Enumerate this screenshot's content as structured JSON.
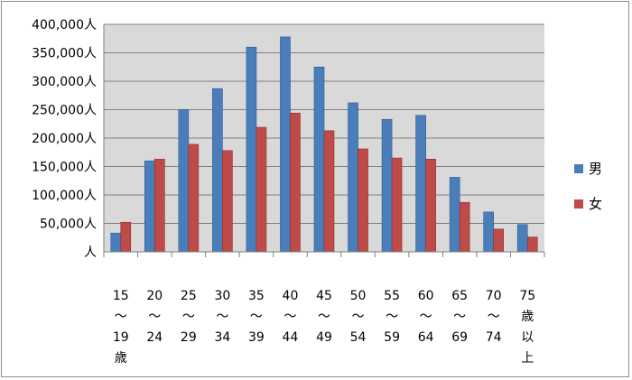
{
  "chart_data": {
    "type": "bar",
    "categories": [
      [
        "15",
        "〜",
        "19",
        "歳"
      ],
      [
        "20",
        "〜",
        "24"
      ],
      [
        "25",
        "〜",
        "29"
      ],
      [
        "30",
        "〜",
        "34"
      ],
      [
        "35",
        "〜",
        "39"
      ],
      [
        "40",
        "〜",
        "44"
      ],
      [
        "45",
        "〜",
        "49"
      ],
      [
        "50",
        "〜",
        "54"
      ],
      [
        "55",
        "〜",
        "59"
      ],
      [
        "60",
        "〜",
        "64"
      ],
      [
        "65",
        "〜",
        "69"
      ],
      [
        "70",
        "〜",
        "74"
      ],
      [
        "75",
        "歳",
        "以",
        "上"
      ]
    ],
    "series": [
      {
        "name": "男",
        "color": "#4a7ebb",
        "values": [
          33000,
          160000,
          250000,
          287000,
          360000,
          378000,
          325000,
          262000,
          233000,
          240000,
          131000,
          70000,
          48000
        ]
      },
      {
        "name": "女",
        "color": "#be4b48",
        "values": [
          52000,
          163000,
          189000,
          178000,
          219000,
          244000,
          213000,
          181000,
          165000,
          163000,
          87000,
          40000,
          26000
        ]
      }
    ],
    "ylim": [
      0,
      400000
    ],
    "yticks": [
      "人",
      "50,000人",
      "100,000人",
      "150,000人",
      "200,000人",
      "250,000人",
      "300,000人",
      "350,000人",
      "400,000人"
    ],
    "grid": true,
    "legend": "right"
  }
}
